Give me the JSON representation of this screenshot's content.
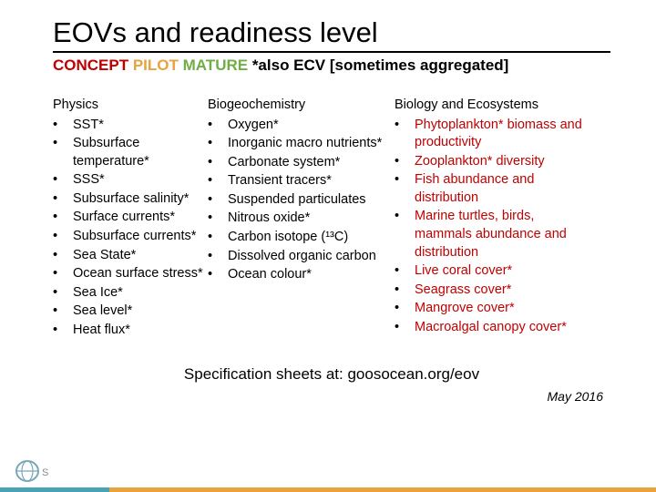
{
  "title": "EOVs and readiness level",
  "subtitle_parts": {
    "concept": "CONCEPT",
    "pilot": "  PILOT",
    "mature": "  MATURE",
    "note": "  *also ECV [sometimes aggregated]"
  },
  "columns": {
    "physics": {
      "heading": "Physics",
      "items": [
        "SST*",
        "Subsurface temperature*",
        "SSS*",
        "Subsurface salinity*",
        "Surface currents*",
        "Subsurface currents*",
        "Sea State*",
        "Ocean surface stress*",
        "Sea Ice*",
        "Sea level*",
        "Heat flux*"
      ]
    },
    "biogeochemistry": {
      "heading": "Biogeochemistry",
      "items": [
        "Oxygen*",
        "Inorganic macro nutrients*",
        "Carbonate system*",
        "Transient tracers*",
        "Suspended particulates",
        "Nitrous oxide*",
        "Carbon isotope (¹³C)",
        "Dissolved organic carbon",
        "Ocean colour*"
      ]
    },
    "biology": {
      "heading": "Biology and Ecosystems",
      "items": [
        "Phytoplankton* biomass and productivity",
        "Zooplankton* diversity",
        "Fish abundance and distribution",
        "Marine turtles, birds, mammals abundance and distribution",
        "Live coral cover*",
        "Seagrass cover*",
        "Mangrove cover*",
        "Macroalgal canopy cover*"
      ]
    }
  },
  "spec_line": "Specification sheets at: goosocean.org/eov",
  "date": "May 2016",
  "colors": {
    "concept": "#c00000",
    "pilot": "#e8a33d",
    "mature": "#70ad47",
    "text": "#000000"
  }
}
